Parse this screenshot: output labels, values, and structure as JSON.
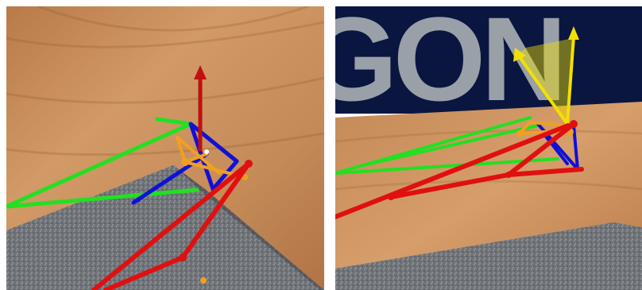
{
  "figure": {
    "panels": [
      {
        "id": "left",
        "description_tag": "render-view-left"
      },
      {
        "id": "right",
        "description_tag": "render-view-right",
        "banner_text": "GON"
      }
    ],
    "colors": {
      "wood": "#c98f5c",
      "wood_dark": "#a8693d",
      "carpet": "#6f7377",
      "backdrop": "#0a1640",
      "banner_letters": "#9aa0a8",
      "link_green": "#22e022",
      "link_red": "#e01010",
      "link_blue": "#1010d8",
      "link_orange": "#f0a020",
      "axis_yellow": "#f2e000"
    }
  }
}
